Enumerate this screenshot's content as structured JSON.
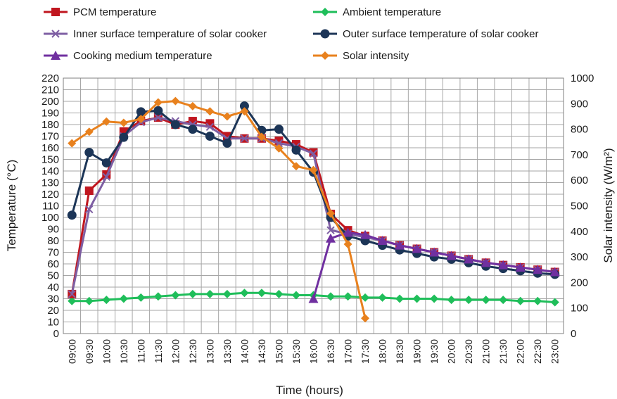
{
  "chart_data": {
    "type": "line",
    "xlabel": "Time (hours)",
    "ylabel": "Temperature (°C)",
    "ylabel_right": "Solar intensity (W/m²)",
    "ylim": [
      0,
      220
    ],
    "ylim_right": [
      0,
      1000
    ],
    "yticks": [
      0,
      10,
      20,
      30,
      40,
      50,
      60,
      70,
      80,
      90,
      100,
      110,
      120,
      130,
      140,
      150,
      160,
      170,
      180,
      190,
      200,
      210,
      220
    ],
    "yticks_right": [
      0,
      100,
      200,
      300,
      400,
      500,
      600,
      700,
      800,
      900,
      1000
    ],
    "grid": true,
    "legend_position": "top",
    "categories": [
      "09:00",
      "09:30",
      "10:00",
      "10:30",
      "11:00",
      "11:30",
      "12:00",
      "12:30",
      "13:00",
      "13:30",
      "14:00",
      "14:30",
      "15:00",
      "15:30",
      "16:00",
      "16:30",
      "17:00",
      "17:30",
      "18:00",
      "18:30",
      "19:00",
      "19:30",
      "20:00",
      "20:30",
      "21:00",
      "21:30",
      "22:00",
      "22:30",
      "23:00"
    ],
    "series": [
      {
        "name": "PCM temperature",
        "color": "#c0161f",
        "marker": "square",
        "axis": "left",
        "values": [
          34,
          123,
          137,
          174,
          183,
          186,
          180,
          183,
          181,
          170,
          168,
          168,
          166,
          163,
          156,
          103,
          89,
          84,
          80,
          76,
          73,
          70,
          67,
          64,
          61,
          59,
          57,
          55,
          53
        ]
      },
      {
        "name": "Ambient temperature",
        "color": "#1fbe5a",
        "marker": "diamond",
        "axis": "left",
        "values": [
          28,
          28,
          29,
          30,
          31,
          32,
          33,
          34,
          34,
          34,
          35,
          35,
          34,
          33,
          33,
          32,
          32,
          31,
          31,
          30,
          30,
          30,
          29,
          29,
          29,
          29,
          28,
          28,
          27
        ]
      },
      {
        "name": "Inner surface temperature of solar cooker",
        "color": "#7e5fa3",
        "marker": "x",
        "axis": "left",
        "values": [
          34,
          107,
          135,
          170,
          182,
          186,
          183,
          180,
          178,
          168,
          168,
          168,
          164,
          161,
          155,
          89,
          86,
          83,
          80,
          76,
          73,
          70,
          67,
          64,
          61,
          59,
          57,
          55,
          53
        ]
      },
      {
        "name": "Outer surface temperature of solar cooker",
        "color": "#1c3557",
        "marker": "circle",
        "axis": "left",
        "values": [
          102,
          156,
          147,
          169,
          191,
          192,
          180,
          176,
          170,
          164,
          196,
          175,
          176,
          158,
          139,
          100,
          84,
          80,
          76,
          72,
          69,
          66,
          64,
          61,
          58,
          56,
          54,
          52,
          51
        ]
      },
      {
        "name": "Cooking medium temperature",
        "color": "#7030a0",
        "marker": "triangle",
        "axis": "left",
        "values": [
          null,
          null,
          null,
          null,
          null,
          null,
          null,
          null,
          null,
          null,
          null,
          null,
          null,
          null,
          30,
          82,
          87,
          85,
          80,
          76,
          73,
          70,
          67,
          64,
          61,
          59,
          57,
          55,
          53
        ]
      },
      {
        "name": "Solar intensity",
        "color": "#e8811e",
        "marker": "diamond",
        "axis": "right",
        "values": [
          745,
          790,
          830,
          825,
          840,
          905,
          910,
          890,
          870,
          850,
          870,
          770,
          725,
          655,
          640,
          470,
          350,
          60,
          null,
          null,
          null,
          null,
          null,
          null,
          null,
          null,
          null,
          null,
          null
        ]
      }
    ]
  }
}
